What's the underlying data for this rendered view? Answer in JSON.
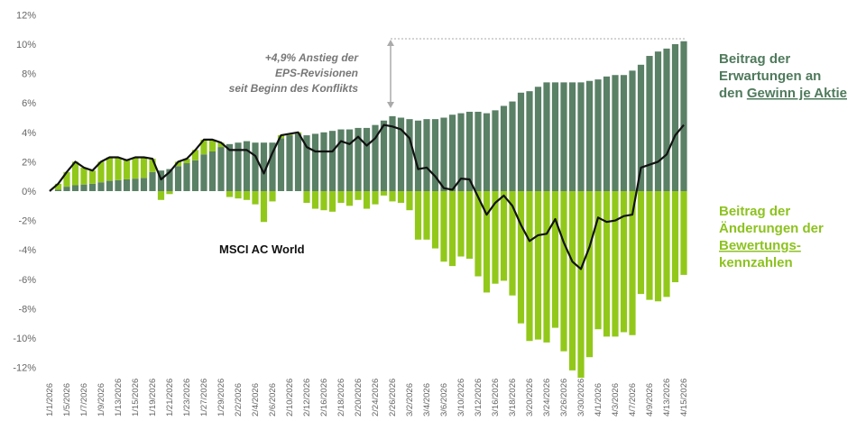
{
  "chart_data": {
    "type": "bar",
    "ylim": [
      -12,
      12
    ],
    "yticks": [
      "12%",
      "10%",
      "8%",
      "6%",
      "4%",
      "2%",
      "0%",
      "-2%",
      "-4%",
      "-6%",
      "-8%",
      "-10%",
      "-12%"
    ],
    "ytick_values": [
      12,
      10,
      8,
      6,
      4,
      2,
      0,
      -2,
      -4,
      -6,
      -8,
      -10,
      -12
    ],
    "x_tick_labels": [
      "1/1/2026",
      "1/5/2026",
      "1/7/2026",
      "1/9/2026",
      "1/13/2026",
      "1/15/2026",
      "1/19/2026",
      "1/21/2026",
      "1/23/2026",
      "1/27/2026",
      "1/29/2026",
      "2/2/2026",
      "2/4/2026",
      "2/6/2026",
      "2/10/2026",
      "2/12/2026",
      "2/16/2026",
      "2/18/2026",
      "2/20/2026",
      "2/24/2026",
      "2/26/2026",
      "3/2/2026",
      "3/4/2026",
      "3/6/2026",
      "3/10/2026",
      "3/12/2026",
      "3/16/2026",
      "3/18/2026",
      "3/20/2026",
      "3/24/2026",
      "3/26/2026",
      "3/30/2026",
      "4/1/2026",
      "4/3/2026",
      "4/7/2026",
      "4/9/2026",
      "4/13/2026",
      "4/15/2026"
    ],
    "series": [
      {
        "name": "Beitrag der Erwartungen an den Gewinn je Aktie",
        "kind": "bar",
        "color": "#5a8066",
        "values": [
          0,
          0.1,
          0.3,
          0.4,
          0.45,
          0.5,
          0.6,
          0.7,
          0.75,
          0.8,
          0.85,
          0.9,
          1.3,
          1.4,
          1.5,
          1.7,
          1.9,
          2.1,
          2.5,
          2.7,
          3.0,
          3.2,
          3.3,
          3.4,
          3.3,
          3.3,
          3.3,
          3.6,
          3.8,
          3.9,
          3.8,
          3.9,
          4.0,
          4.1,
          4.2,
          4.2,
          4.3,
          4.3,
          4.5,
          4.8,
          5.1,
          5.0,
          4.9,
          4.8,
          4.9,
          4.9,
          5.0,
          5.2,
          5.3,
          5.4,
          5.4,
          5.3,
          5.5,
          5.8,
          6.1,
          6.7,
          6.8,
          7.1,
          7.4,
          7.4,
          7.4,
          7.4,
          7.4,
          7.5,
          7.6,
          7.8,
          7.9,
          7.9,
          8.2,
          8.6,
          9.2,
          9.5,
          9.7,
          10.0,
          10.2
        ]
      },
      {
        "name": "Beitrag der Änderungen der Bewertungskennzahlen",
        "kind": "bar",
        "color": "#92c81a",
        "values": [
          0,
          0.4,
          1.0,
          1.6,
          1.15,
          0.9,
          1.4,
          1.6,
          1.55,
          1.3,
          1.45,
          1.4,
          0.9,
          -0.6,
          -0.2,
          0.3,
          0.3,
          0.7,
          1.0,
          0.8,
          0.3,
          -0.4,
          -0.5,
          -0.6,
          -0.9,
          -2.1,
          -0.7,
          0.2,
          0.1,
          0.1,
          -0.8,
          -1.2,
          -1.3,
          -1.4,
          -0.8,
          -1.0,
          -0.6,
          -1.2,
          -0.9,
          -0.3,
          -0.7,
          -0.8,
          -1.3,
          -3.3,
          -3.3,
          -3.9,
          -4.8,
          -5.1,
          -4.45,
          -4.6,
          -5.8,
          -6.9,
          -6.3,
          -6.1,
          -7.1,
          -9.0,
          -10.2,
          -10.1,
          -10.3,
          -9.3,
          -10.9,
          -12.2,
          -12.7,
          -11.3,
          -9.4,
          -9.9,
          -9.9,
          -9.6,
          -9.8,
          -7.0,
          -7.4,
          -7.5,
          -7.2,
          -6.2,
          -5.7
        ]
      },
      {
        "name": "MSCI AC World",
        "kind": "line",
        "color": "#111111",
        "values": [
          0,
          0.5,
          1.3,
          2.0,
          1.6,
          1.4,
          2.0,
          2.3,
          2.3,
          2.1,
          2.3,
          2.3,
          2.2,
          0.8,
          1.3,
          2.0,
          2.2,
          2.8,
          3.5,
          3.5,
          3.3,
          2.8,
          2.8,
          2.8,
          2.4,
          1.2,
          2.6,
          3.8,
          3.9,
          4.0,
          3.0,
          2.7,
          2.7,
          2.7,
          3.4,
          3.2,
          3.7,
          3.1,
          3.6,
          4.5,
          4.4,
          4.2,
          3.6,
          1.5,
          1.6,
          1.0,
          0.2,
          0.1,
          0.85,
          0.8,
          -0.4,
          -1.6,
          -0.8,
          -0.3,
          -1.0,
          -2.3,
          -3.4,
          -3.0,
          -2.9,
          -1.9,
          -3.5,
          -4.8,
          -5.3,
          -3.8,
          -1.8,
          -2.1,
          -2.0,
          -1.7,
          -1.6,
          1.6,
          1.8,
          2.0,
          2.5,
          3.8,
          4.5
        ]
      }
    ],
    "annotation": {
      "lines": [
        "+4,9% Anstieg der",
        "EPS-Revisionen",
        "seit Beginn des Konflikts"
      ]
    },
    "labels": {
      "dark": {
        "lines": [
          "Beitrag der",
          "Erwartungen an",
          "den "
        ],
        "underlined": "Gewinn je Aktie"
      },
      "light": {
        "lines": [
          "Beitrag der",
          "Änderungen der"
        ],
        "underlined": "Bewertungs-",
        "last": "kennzahlen"
      },
      "line": "MSCI AC World"
    },
    "grid": false,
    "legend": "right"
  }
}
